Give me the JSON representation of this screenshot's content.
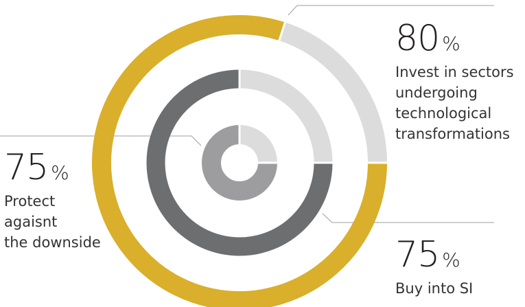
{
  "chart_data": {
    "type": "ring",
    "unit": "%",
    "series": [
      {
        "name": "Invest in sectors\nundergoing\ntechnological\ntransformations",
        "value": 80,
        "color": "#d9af2b",
        "track_color": "#dcdcdd"
      },
      {
        "name": "Buy into SI",
        "value": 75,
        "color": "#6d6e70",
        "track_color": "#dcdcdd"
      },
      {
        "name": "Protect\nagaisnt\nthe downside",
        "value": 75,
        "color": "#9d9d9f",
        "track_color": "#dcdcdd"
      }
    ]
  }
}
